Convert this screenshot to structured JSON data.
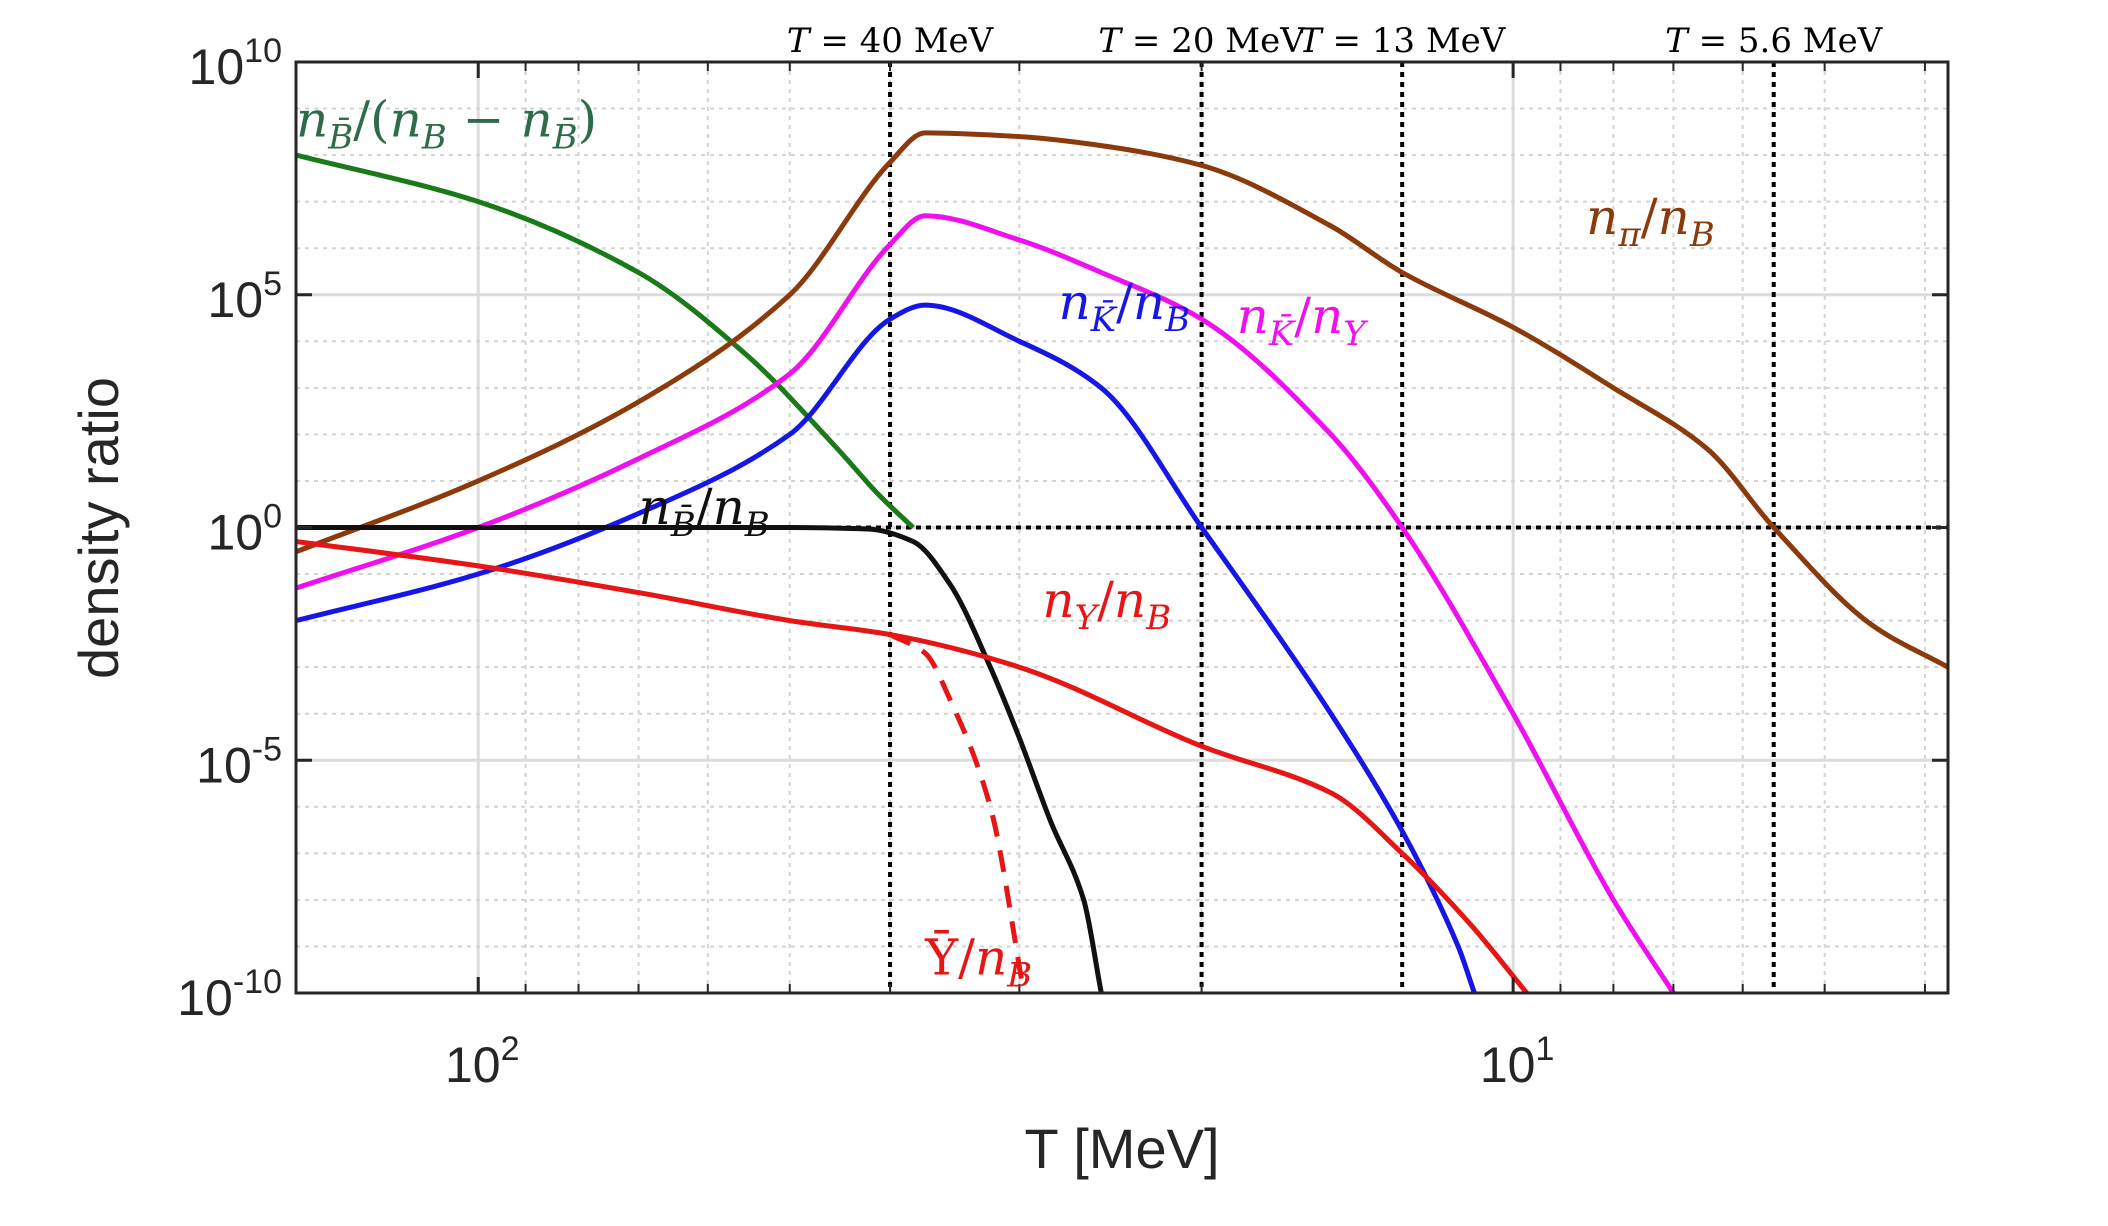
{
  "chart_data": {
    "type": "line",
    "xlabel": "T [MeV]",
    "ylabel": "density ratio",
    "x_scale": "log",
    "x_reversed": true,
    "y_scale": "log",
    "xlim": [
      150,
      3.8
    ],
    "ylim": [
      1e-10,
      10000000000.0
    ],
    "grid": true,
    "x_major_ticks": [
      100,
      10
    ],
    "x_tick_labels": [
      {
        "base": "10",
        "exp": "2"
      },
      {
        "base": "10",
        "exp": "1"
      }
    ],
    "y_major_ticks": [
      10000000000.0,
      100000.0,
      1,
      1e-05,
      1e-10
    ],
    "y_tick_labels": [
      {
        "base": "10",
        "exp": "10"
      },
      {
        "base": "10",
        "exp": "5"
      },
      {
        "base": "10",
        "exp": "0"
      },
      {
        "base": "10",
        "exp": "-5"
      },
      {
        "base": "10",
        "exp": "-10"
      }
    ],
    "reference_lines": {
      "horizontal": [
        {
          "y": 1,
          "style": "dotted",
          "color": "#000000"
        }
      ],
      "vertical": [
        {
          "x": 40,
          "label": "T = 40 MeV"
        },
        {
          "x": 20,
          "label": "T = 20 MeV"
        },
        {
          "x": 12.8,
          "label": "T = 13 MeV"
        },
        {
          "x": 5.6,
          "label": "T = 5.6 MeV"
        }
      ]
    },
    "series": [
      {
        "name": "n_B̄/(n_B − n_B̄)",
        "color": "#1a7a1a",
        "style": "solid",
        "points": [
          [
            150,
            100000000.0
          ],
          [
            100,
            10000000.0
          ],
          [
            70,
            300000.0
          ],
          [
            55,
            5000.0
          ],
          [
            45,
            50
          ],
          [
            41,
            5
          ],
          [
            38,
            1
          ]
        ]
      },
      {
        "name": "n_π/n_B",
        "color": "#8b3a0b",
        "style": "solid",
        "points": [
          [
            150,
            0.3
          ],
          [
            100,
            10
          ],
          [
            70,
            500
          ],
          [
            50,
            100000.0
          ],
          [
            40,
            70000000.0
          ],
          [
            37,
            300000000.0
          ],
          [
            30,
            250000000.0
          ],
          [
            25,
            160000000.0
          ],
          [
            20,
            60000000.0
          ],
          [
            15,
            3000000.0
          ],
          [
            12.8,
            300000.0
          ],
          [
            10,
            20000.0
          ],
          [
            8,
            1000.0
          ],
          [
            6.5,
            50
          ],
          [
            5.6,
            1
          ],
          [
            4.5,
            0.008
          ],
          [
            3.8,
            0.001
          ]
        ]
      },
      {
        "name": "n_K̄/n_Y",
        "color": "#ee11ee",
        "style": "solid",
        "points": [
          [
            150,
            0.05
          ],
          [
            100,
            1
          ],
          [
            70,
            30
          ],
          [
            50,
            2000.0
          ],
          [
            40,
            1200000.0
          ],
          [
            37,
            5000000.0
          ],
          [
            30,
            1500000.0
          ],
          [
            25,
            300000.0
          ],
          [
            20,
            30000.0
          ],
          [
            15,
            100
          ],
          [
            12.8,
            1
          ],
          [
            10,
            0.0001
          ],
          [
            8,
            1e-08
          ],
          [
            7,
            1e-10
          ]
        ]
      },
      {
        "name": "n_K̄/n_B",
        "color": "#1616e6",
        "style": "solid",
        "points": [
          [
            150,
            0.01
          ],
          [
            100,
            0.1
          ],
          [
            70,
            2
          ],
          [
            50,
            100
          ],
          [
            40,
            30000.0
          ],
          [
            37,
            60000.0
          ],
          [
            30,
            10000.0
          ],
          [
            25,
            1000.0
          ],
          [
            20,
            1
          ],
          [
            15,
            0.0001
          ],
          [
            12.8,
            3e-07
          ],
          [
            11.3,
            1e-09
          ],
          [
            10.9,
            1e-10
          ]
        ]
      },
      {
        "name": "n_B̄/n_B",
        "color": "#111111",
        "style": "solid",
        "points": [
          [
            150,
            1
          ],
          [
            100,
            1
          ],
          [
            70,
            1
          ],
          [
            50,
            0.999
          ],
          [
            42,
            0.93
          ],
          [
            38,
            0.5
          ],
          [
            35,
            0.06
          ],
          [
            32,
            0.001
          ],
          [
            30,
            3e-05
          ],
          [
            28,
            5e-07
          ],
          [
            26,
            1e-08
          ],
          [
            25,
            1e-10
          ]
        ]
      },
      {
        "name": "n_Y/n_B",
        "color": "#e61616",
        "style": "solid",
        "points": [
          [
            150,
            0.5
          ],
          [
            100,
            0.15
          ],
          [
            70,
            0.04
          ],
          [
            50,
            0.01
          ],
          [
            40,
            0.005
          ],
          [
            30,
            0.001
          ],
          [
            20,
            2e-05
          ],
          [
            15,
            2e-06
          ],
          [
            12.8,
            1e-07
          ],
          [
            11,
            3e-09
          ],
          [
            9.7,
            1e-10
          ]
        ]
      },
      {
        "name": "n_Ȳ/n_B",
        "color": "#e61616",
        "style": "dashed",
        "points": [
          [
            40,
            0.005
          ],
          [
            37,
            0.002
          ],
          [
            35,
            0.0002
          ],
          [
            32,
            1e-06
          ],
          [
            29.7,
            1e-10
          ]
        ]
      }
    ],
    "series_labels": [
      {
        "math": "n_B̄/(n_B − n_B̄)",
        "color": "#2e6b4a",
        "at_x": 150,
        "at_y": 250000000.0
      },
      {
        "math": "n_π/n_B",
        "color": "#8b3a0b",
        "at_x": 8.5,
        "at_y": 2000000.0
      },
      {
        "math": "n_K̄/n_B",
        "color": "#1616e6",
        "at_x": 27.5,
        "at_y": 30000.0
      },
      {
        "math": "n_K̄/n_Y",
        "color": "#ee11ee",
        "at_x": 18.5,
        "at_y": 15000.0
      },
      {
        "math": "n_B̄/n_B",
        "color": "#111111",
        "at_x": 70,
        "at_y": 1.2
      },
      {
        "math": "n_Y/n_B",
        "color": "#e61616",
        "at_x": 28.5,
        "at_y": 0.012
      },
      {
        "math": "n_Ȳ/n_B",
        "color": "#e61616",
        "at_x": 37,
        "at_y": 2.5e-10
      }
    ]
  }
}
